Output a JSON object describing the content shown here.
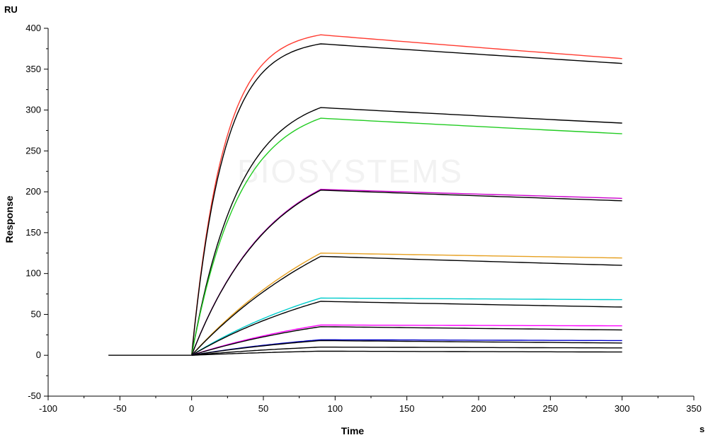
{
  "chart_data": {
    "type": "line",
    "title": "",
    "xlabel": "Time",
    "ylabel": "Response",
    "x_unit": "s",
    "y_unit": "RU",
    "xlim": [
      -100,
      350
    ],
    "ylim": [
      -50,
      400
    ],
    "x_ticks": [
      -100,
      -50,
      0,
      50,
      100,
      150,
      200,
      250,
      300,
      350
    ],
    "y_ticks": [
      -50,
      0,
      50,
      100,
      150,
      200,
      250,
      300,
      350,
      400
    ],
    "grid": false,
    "legend": "none",
    "watermark": "BIOSYSTEMS",
    "baseline": {
      "x": [
        -58,
        0
      ],
      "y": [
        0,
        0
      ],
      "color": "#000000"
    },
    "series": [
      {
        "color": "#ff3b30",
        "peak": 392,
        "end": 363
      },
      {
        "color": "#000000",
        "peak": 381,
        "end": 357
      },
      {
        "color": "#000000",
        "peak": 303,
        "end": 284
      },
      {
        "color": "#22cc22",
        "peak": 290,
        "end": 271
      },
      {
        "color": "#cc00cc",
        "peak": 203,
        "end": 192
      },
      {
        "color": "#000000",
        "peak": 202,
        "end": 189
      },
      {
        "color": "#e6a020",
        "peak": 125,
        "end": 119
      },
      {
        "color": "#000000",
        "peak": 121,
        "end": 110
      },
      {
        "color": "#00cccc",
        "peak": 70,
        "end": 68
      },
      {
        "color": "#000000",
        "peak": 66,
        "end": 59
      },
      {
        "color": "#ff00ff",
        "peak": 37,
        "end": 36
      },
      {
        "color": "#000000",
        "peak": 35,
        "end": 31
      },
      {
        "color": "#0000cc",
        "peak": 19,
        "end": 18
      },
      {
        "color": "#000000",
        "peak": 18,
        "end": 15
      },
      {
        "color": "#000000",
        "peak": 10,
        "end": 9
      },
      {
        "color": "#000000",
        "peak": 5,
        "end": 4
      }
    ],
    "association_end": 90,
    "dissociation_end": 300
  }
}
